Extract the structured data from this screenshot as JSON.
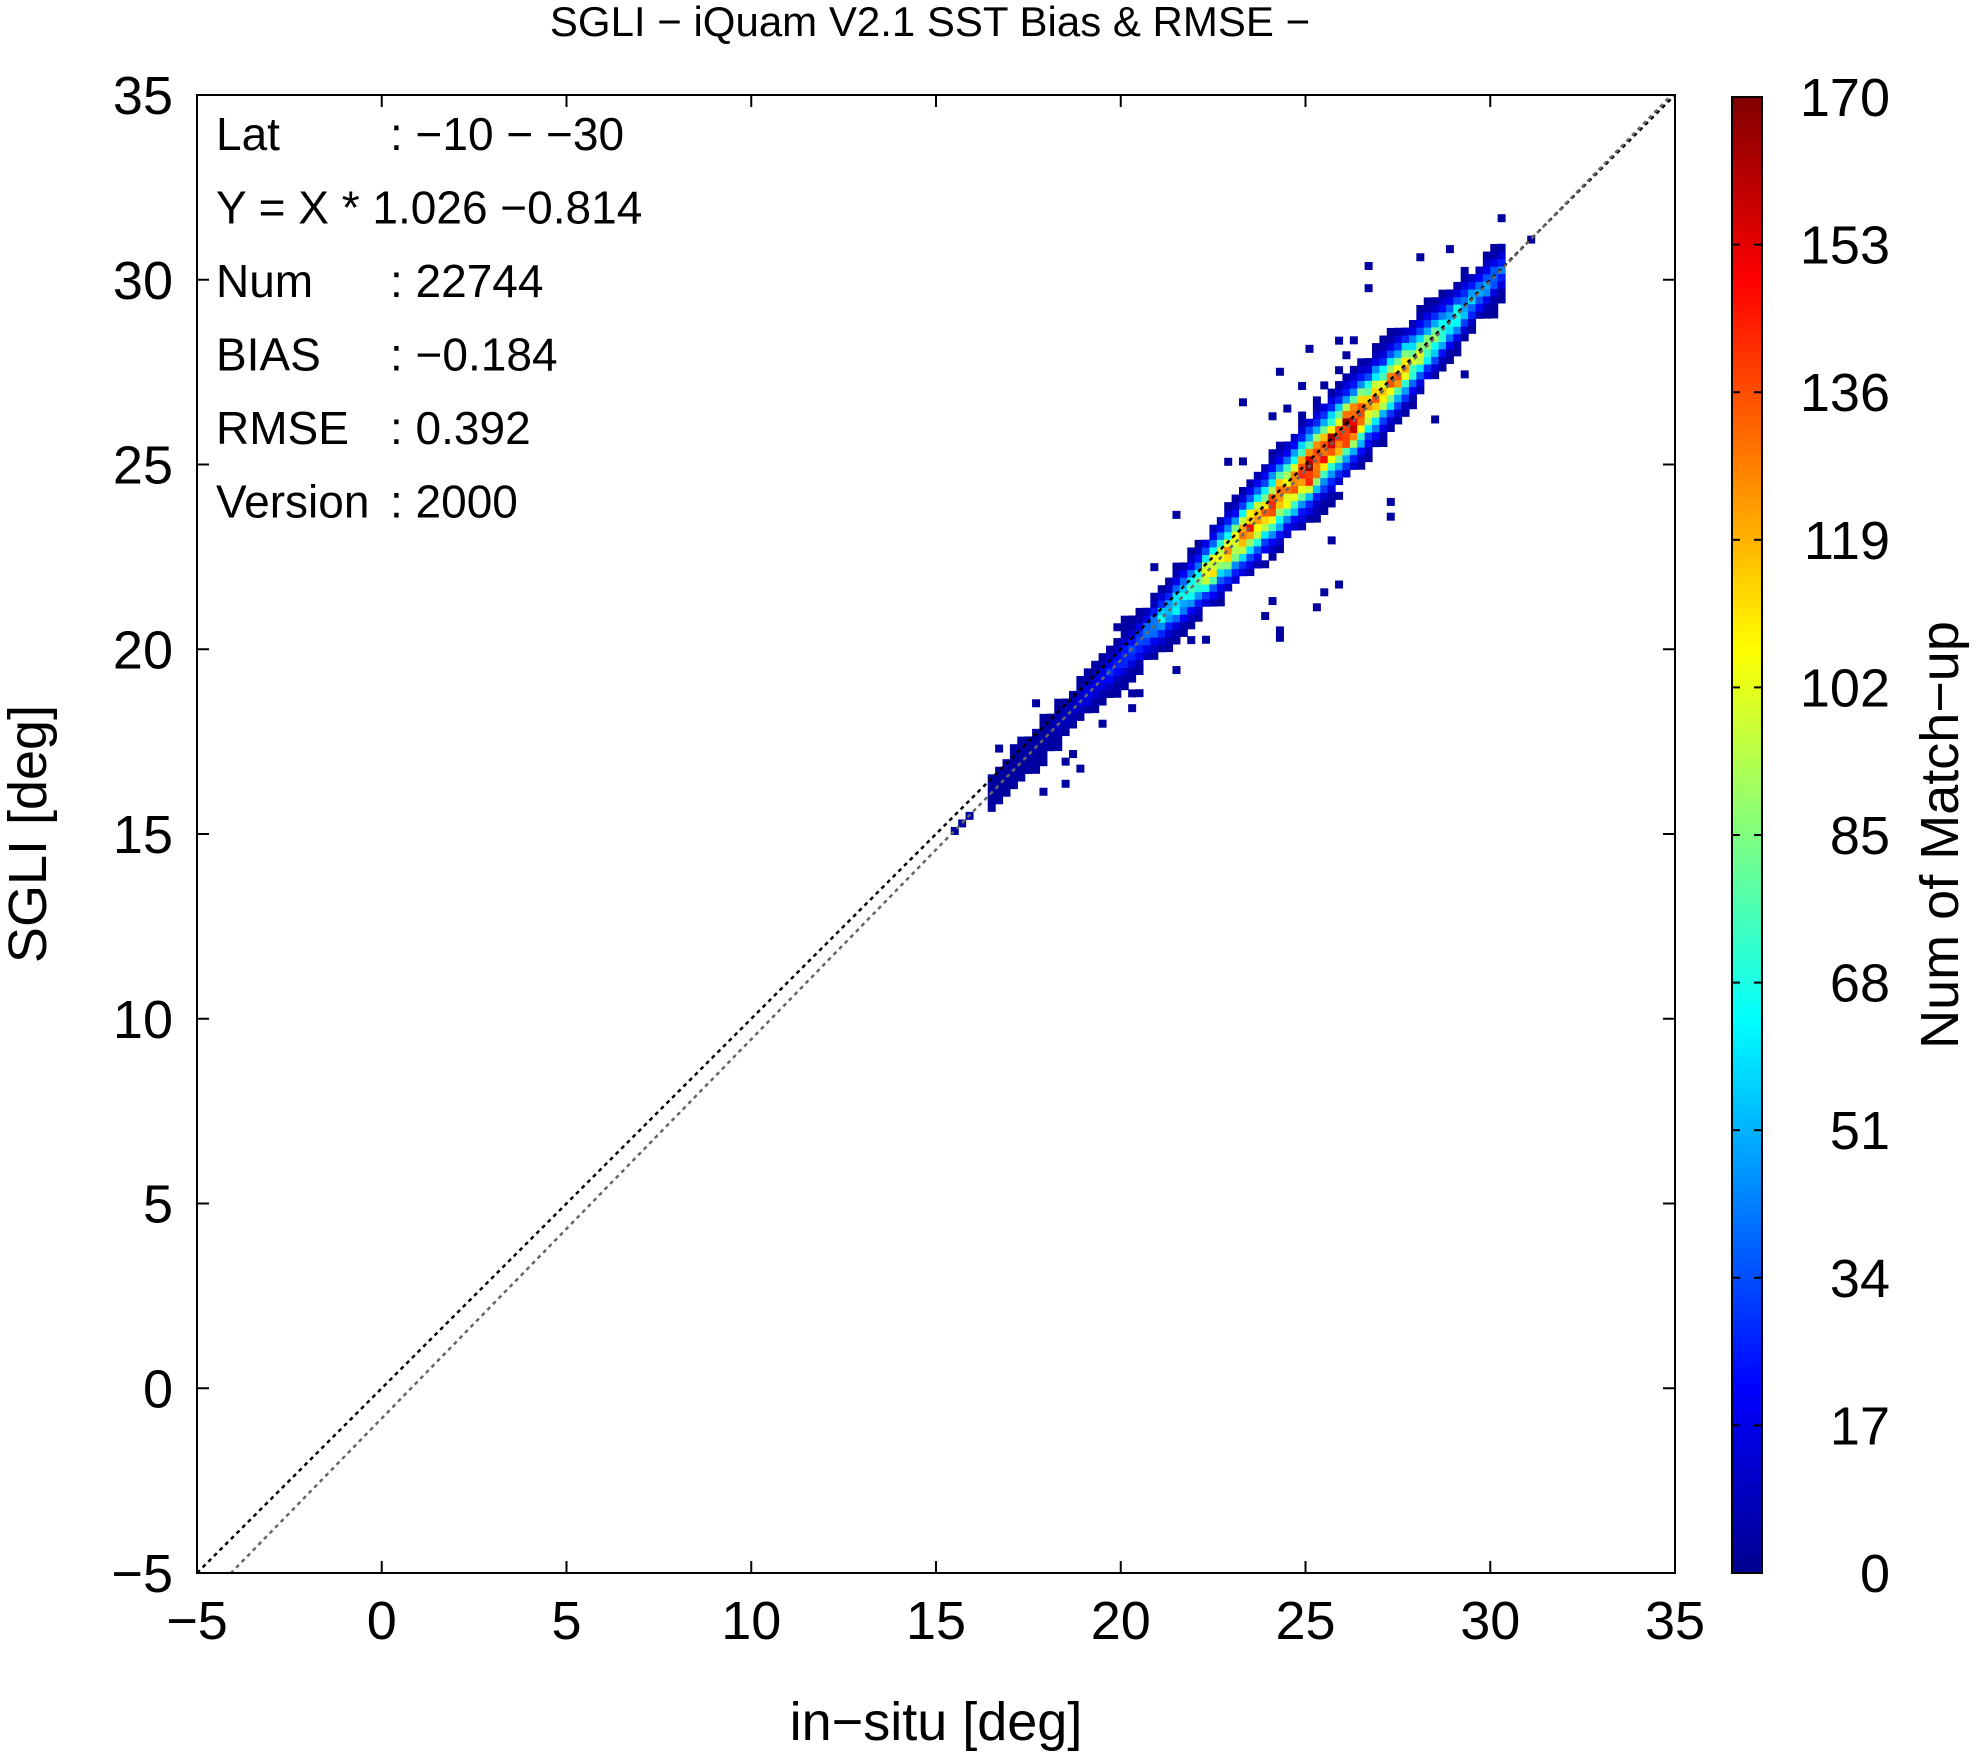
{
  "chart_data": {
    "type": "heatmap",
    "title": "SGLI − iQuam V2.1 SST Bias & RMSE  −",
    "xlabel": "in−situ [deg]",
    "ylabel": "SGLI [deg]",
    "xlim": [
      -5,
      35
    ],
    "ylim": [
      -5,
      35
    ],
    "x_ticks": [
      -5,
      0,
      5,
      10,
      15,
      20,
      25,
      30,
      35
    ],
    "x_tick_labels": [
      "−5",
      "0",
      "5",
      "10",
      "15",
      "20",
      "25",
      "30",
      "35"
    ],
    "y_ticks": [
      -5,
      0,
      5,
      10,
      15,
      20,
      25,
      30,
      35
    ],
    "y_tick_labels": [
      "−5",
      "0",
      "5",
      "10",
      "15",
      "20",
      "25",
      "30",
      "35"
    ],
    "grid": false,
    "lines": [
      {
        "slope": 1.0,
        "intercept": 0.0,
        "style": "dotted",
        "color": "#000000"
      },
      {
        "slope": 1.026,
        "intercept": -0.814,
        "style": "dotted",
        "color": "#666666"
      }
    ],
    "stats": [
      {
        "label": "Lat",
        "value": ": −10 − −30"
      },
      {
        "label": "Y = X * 1.026 −0.814",
        "value": ""
      },
      {
        "label": "Num",
        "value": ": 22744"
      },
      {
        "label": "BIAS",
        "value": ": −0.184"
      },
      {
        "label": "RMSE",
        "value": ": 0.392"
      },
      {
        "label": "Version",
        "value": ": 2000"
      }
    ],
    "density": {
      "slope": 1.026,
      "intercept": -0.814,
      "x_range": [
        15.2,
        31.0
      ],
      "peak_x": 25.3,
      "max_count": 170,
      "main_cloud_x": [
        16.3,
        30.3
      ]
    },
    "colorbar": {
      "label": "Num of Match−up",
      "min": 0,
      "max": 170,
      "ticks": [
        0,
        17,
        34,
        51,
        68,
        85,
        102,
        119,
        136,
        153,
        170
      ],
      "colors": [
        "#00008f",
        "#0000ff",
        "#0080ff",
        "#00ffff",
        "#80ff80",
        "#ffff00",
        "#ff8000",
        "#ff0000",
        "#800000"
      ]
    },
    "colors": {
      "axes": "#000000",
      "one_to_one_line": "#000000",
      "regression_line": "#666666"
    }
  }
}
